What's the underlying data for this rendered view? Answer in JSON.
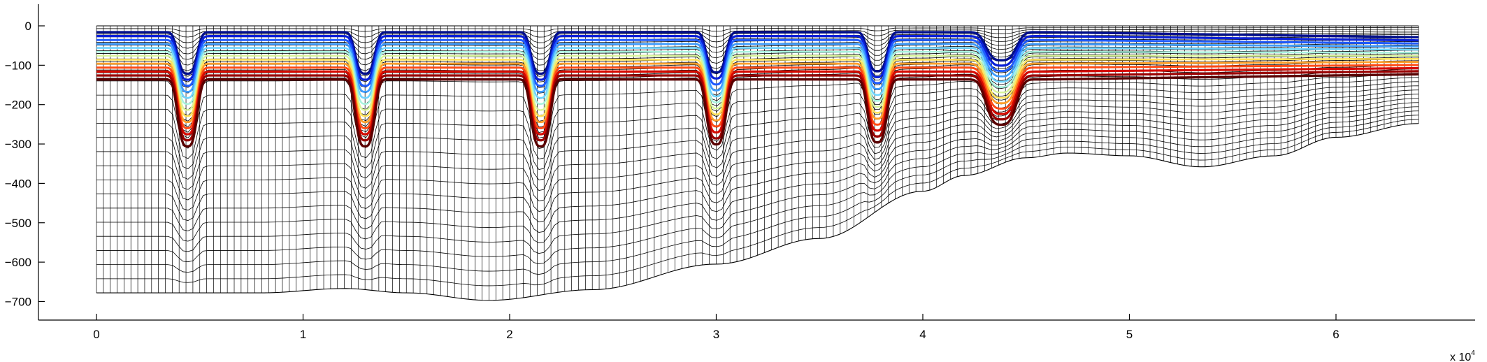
{
  "chart_data": {
    "type": "line",
    "title": "",
    "xlabel": "",
    "ylabel": "",
    "x_exponent_label": "x 10",
    "x_exponent_power": "4",
    "xlim": [
      -0.28,
      6.5
    ],
    "ylim": [
      -750,
      50
    ],
    "x_ticks": [
      0,
      1,
      2,
      3,
      4,
      5,
      6
    ],
    "x_tick_labels": [
      "0",
      "1",
      "2",
      "3",
      "4",
      "5",
      "6"
    ],
    "y_ticks": [
      0,
      -100,
      -200,
      -300,
      -400,
      -500,
      -600,
      -700
    ],
    "y_tick_labels": [
      "0",
      "−100",
      "−200",
      "−300",
      "−400",
      "−500",
      "−600",
      "−700"
    ],
    "grid": false,
    "mesh": {
      "x_start": 0,
      "x_end": 6.4,
      "columns": 192,
      "top": 0,
      "bottom_profile_x": [
        0,
        0.8,
        1.2,
        1.5,
        1.9,
        2.4,
        3.0,
        3.5,
        4.0,
        4.2,
        4.5,
        4.7,
        5.0,
        5.35,
        5.7,
        6.0,
        6.4
      ],
      "bottom_profile_y": [
        -678,
        -678,
        -667,
        -678,
        -697,
        -670,
        -605,
        -540,
        -420,
        -380,
        -335,
        -323,
        -330,
        -358,
        -330,
        -283,
        -248
      ],
      "shallow_fraction": 0.5,
      "deep_fraction": 0.5,
      "shallow_layers": 20,
      "deep_layers": 15
    },
    "channel_troughs": [
      {
        "x": 0.44,
        "depth": 170,
        "width": 0.055
      },
      {
        "x": 1.3,
        "depth": 170,
        "width": 0.055
      },
      {
        "x": 2.15,
        "depth": 170,
        "width": 0.055
      },
      {
        "x": 3.0,
        "depth": 165,
        "width": 0.055
      },
      {
        "x": 3.78,
        "depth": 160,
        "width": 0.055
      },
      {
        "x": 4.38,
        "depth": 115,
        "width": 0.085
      }
    ],
    "series": [
      {
        "base_depth": -16,
        "color": "#000e8c",
        "width": 3.4
      },
      {
        "base_depth": -26,
        "color": "#0a1fd8",
        "width": 3.2
      },
      {
        "base_depth": -36,
        "color": "#1f5bff",
        "width": 3.0
      },
      {
        "base_depth": -46,
        "color": "#3e9cff",
        "width": 2.8
      },
      {
        "base_depth": -56,
        "color": "#6fd4ff",
        "width": 2.6
      },
      {
        "base_depth": -66,
        "color": "#a6f3dd",
        "width": 2.4
      },
      {
        "base_depth": -76,
        "color": "#d8f59a",
        "width": 2.4
      },
      {
        "base_depth": -86,
        "color": "#ffe35c",
        "width": 2.6
      },
      {
        "base_depth": -96,
        "color": "#ff9f2a",
        "width": 2.8
      },
      {
        "base_depth": -106,
        "color": "#ff4a14",
        "width": 3.0
      },
      {
        "base_depth": -116,
        "color": "#d60a00",
        "width": 3.2
      },
      {
        "base_depth": -126,
        "color": "#9b0000",
        "width": 3.3
      },
      {
        "base_depth": -136,
        "color": "#5a0000",
        "width": 3.4
      }
    ]
  }
}
